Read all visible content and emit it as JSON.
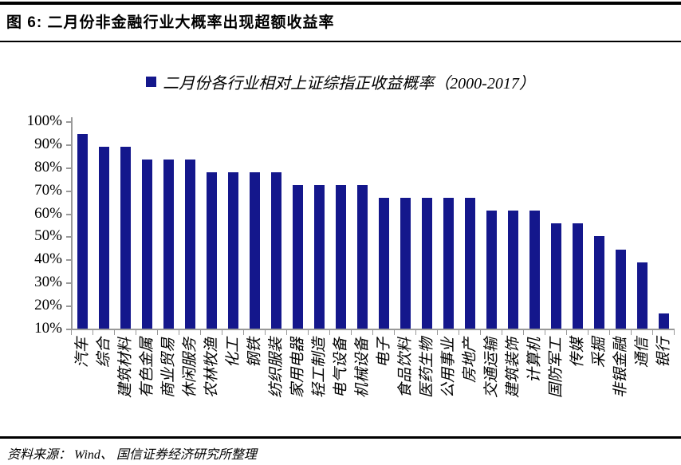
{
  "figure": {
    "title": "图 6:  二月份非金融行业大概率出现超额收益率",
    "source": "资料来源： Wind、 国信证券经济研究所整理"
  },
  "legend": {
    "marker_icon": "square-icon",
    "label": "二月份各行业相对上证综指正收益概率（2000-2017）"
  },
  "colors": {
    "bar": "#14178c",
    "axis": "#999999",
    "rule": "#000000"
  },
  "chart_data": {
    "type": "bar",
    "title": "二月份各行业相对上证综指正收益概率（2000-2017）",
    "categories": [
      "汽车",
      "综合",
      "建筑材料",
      "有色金属",
      "商业贸易",
      "休闲服务",
      "农林牧渔",
      "化工",
      "钢铁",
      "纺织服装",
      "家用电器",
      "轻工制造",
      "电气设备",
      "机械设备",
      "电子",
      "食品饮料",
      "医药生物",
      "公用事业",
      "房地产",
      "交通运输",
      "建筑装饰",
      "计算机",
      "国防军工",
      "传媒",
      "采掘",
      "非银金融",
      "通信",
      "银行"
    ],
    "values": [
      94.4,
      88.9,
      88.9,
      83.3,
      83.3,
      83.3,
      77.8,
      77.8,
      77.8,
      77.8,
      72.2,
      72.2,
      72.2,
      72.2,
      66.7,
      66.7,
      66.7,
      66.7,
      66.7,
      61.1,
      61.1,
      61.1,
      55.6,
      55.6,
      50.0,
      44.4,
      38.9,
      16.7
    ],
    "unit": "%",
    "xlabel": "",
    "ylabel": "",
    "ylim": [
      10,
      100
    ],
    "ytick_labels": [
      "100%",
      "90%",
      "80%",
      "70%",
      "60%",
      "50%",
      "40%",
      "30%",
      "20%",
      "10%"
    ],
    "grid": false,
    "legend_position": "top-center",
    "bar_color": "#14178c"
  }
}
